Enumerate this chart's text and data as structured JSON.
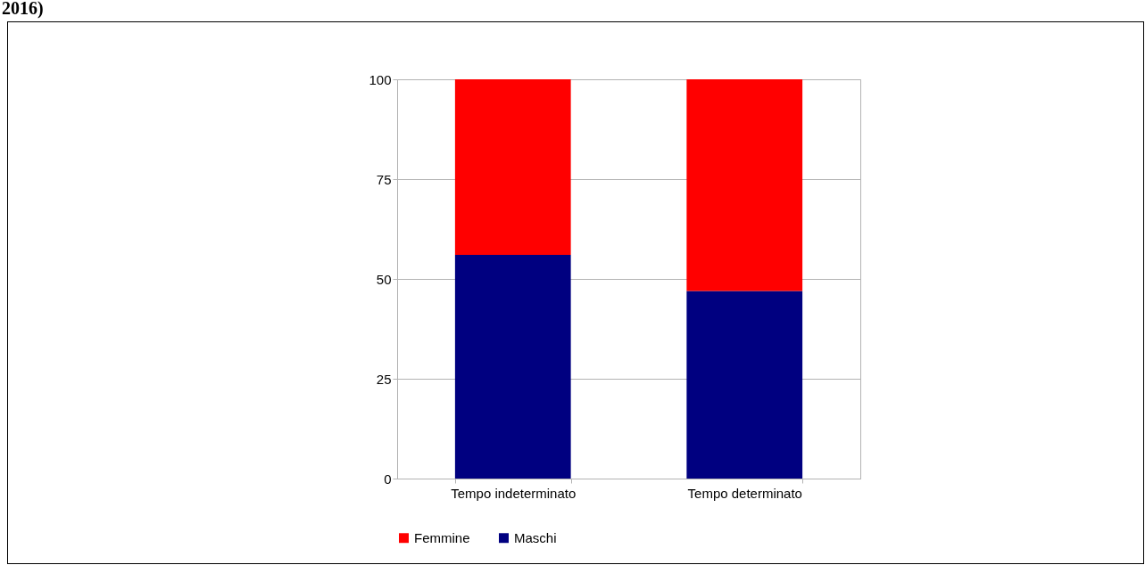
{
  "chart_data": {
    "type": "bar",
    "stacked": true,
    "annotations": [
      "2016)"
    ],
    "categories": [
      "Tempo indeterminato",
      "Tempo determinato"
    ],
    "series": [
      {
        "name": "Maschi",
        "color": "#000080",
        "values": [
          56,
          47
        ]
      },
      {
        "name": "Femmine",
        "color": "#ff0000",
        "values": [
          44,
          53
        ]
      }
    ],
    "ylim": [
      0,
      100
    ],
    "yticks": [
      0,
      25,
      50,
      75,
      100
    ],
    "grid": "y",
    "legend": "bottom"
  }
}
